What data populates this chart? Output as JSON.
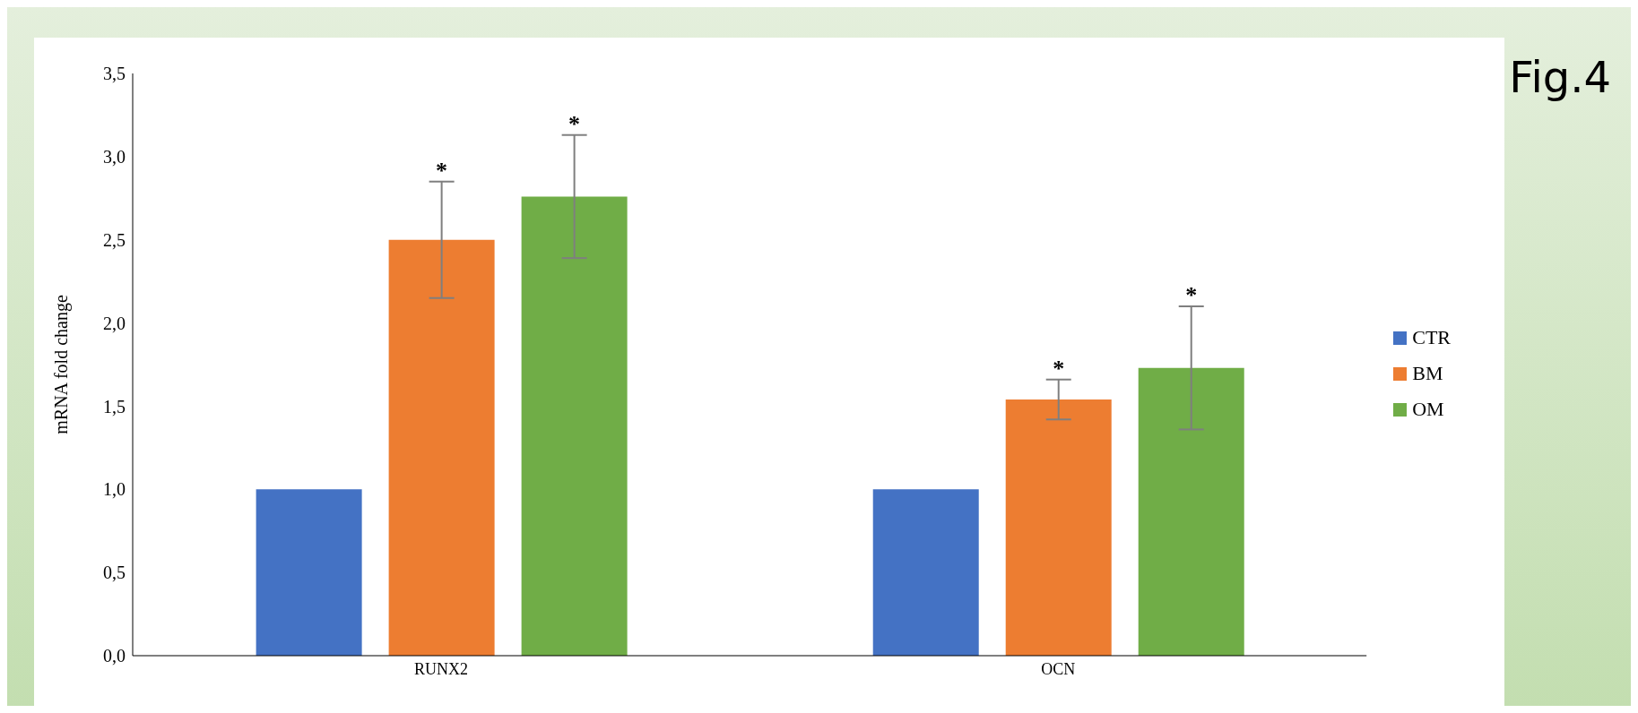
{
  "chart_data": {
    "type": "bar",
    "title": "Fig.4",
    "ylabel": "mRNA fold change",
    "categories": [
      "RUNX2",
      "OCN"
    ],
    "series": [
      {
        "name": "CTR",
        "color": "#4472c4",
        "values": [
          1.0,
          1.0
        ],
        "errors": [
          0,
          0
        ]
      },
      {
        "name": "BM",
        "color": "#ed7d31",
        "values": [
          2.5,
          1.54
        ],
        "errors": [
          0.35,
          0.12
        ]
      },
      {
        "name": "OM",
        "color": "#70ad47",
        "values": [
          2.76,
          1.73
        ],
        "errors": [
          0.37,
          0.37
        ]
      }
    ],
    "ylim": [
      0,
      3.5
    ],
    "yticks": [
      {
        "value": 0,
        "label": "0,0"
      },
      {
        "value": 0.5,
        "label": "0,5"
      },
      {
        "value": 1,
        "label": "1,0"
      },
      {
        "value": 1.5,
        "label": "1,5"
      },
      {
        "value": 2,
        "label": "2,0"
      },
      {
        "value": 2.5,
        "label": "2,5"
      },
      {
        "value": 3,
        "label": "3,0"
      },
      {
        "value": 3.5,
        "label": "3,5"
      }
    ],
    "grid": false,
    "legend": "right",
    "annotations": [
      {
        "text": "*",
        "x": "RUNX2",
        "y": 2.85
      },
      "*",
      {
        "text": "*",
        "x": "OCN",
        "y": 1.66
      },
      "*"
    ]
  }
}
